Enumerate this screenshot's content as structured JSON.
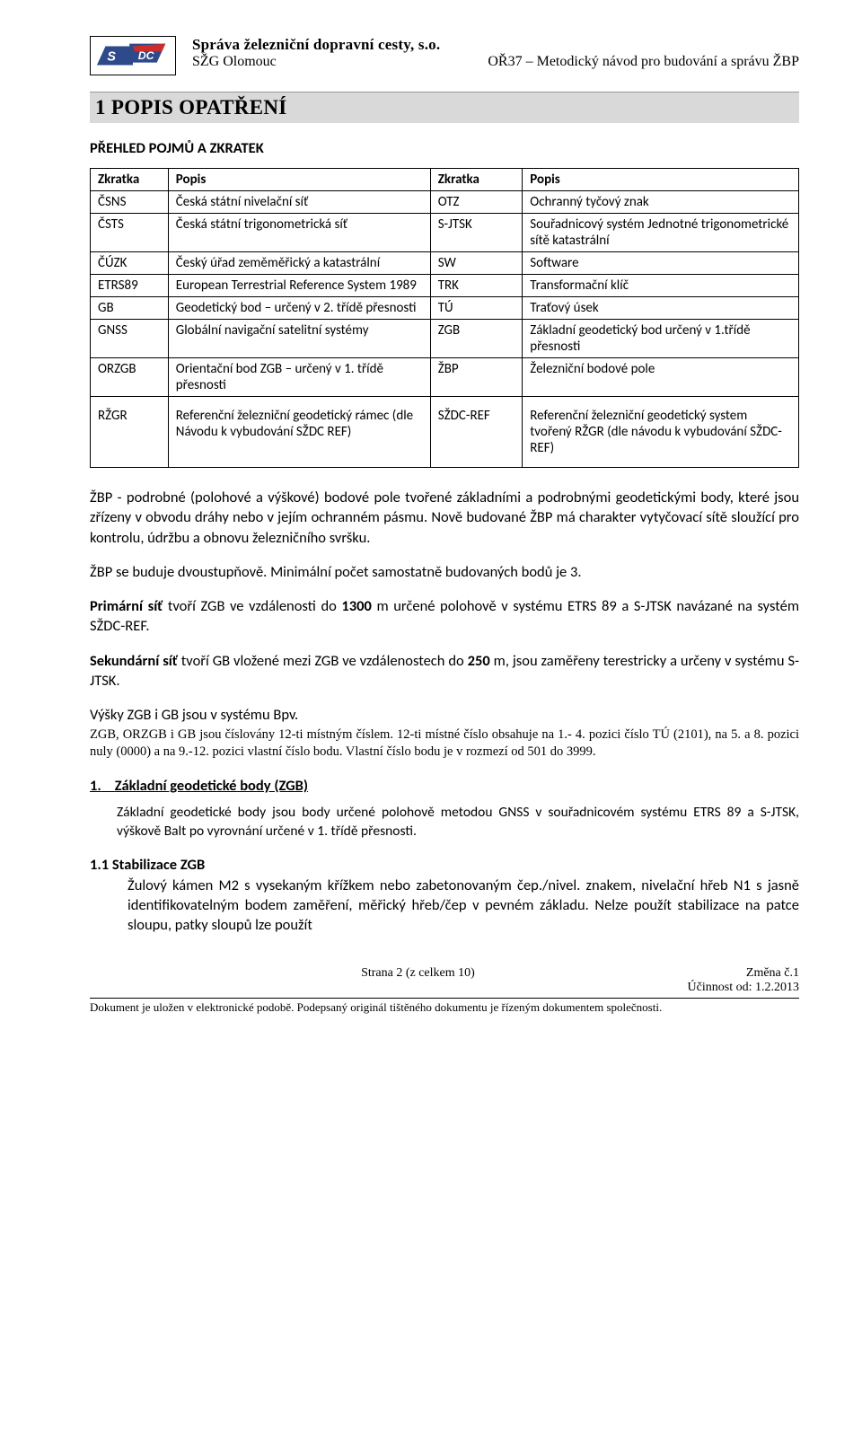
{
  "header": {
    "org": "Správa železniční dopravní cesty, s.o.",
    "left": "SŽG Olomouc",
    "right": "OŘ37 – Metodický návod pro budování a správu ŽBP"
  },
  "h1": "1 POPIS OPATŘENÍ",
  "section_head": "PŘEHLED POJMŮ A ZKRATEK",
  "table": {
    "headers": [
      "Zkratka",
      "Popis",
      "Zkratka",
      "Popis"
    ],
    "rows": [
      [
        "ČSNS",
        "Česká státní nivelační síť",
        "OTZ",
        "Ochranný tyčový znak"
      ],
      [
        "ČSTS",
        "Česká státní trigonometrická síť",
        "S-JTSK",
        "Souřadnicový systém Jednotné trigonometrické sítě katastrální"
      ],
      [
        "ČÚZK",
        "Český úřad zeměměřický a katastrální",
        "SW",
        "Software"
      ],
      [
        "ETRS89",
        "European Terrestrial Reference System 1989",
        "TRK",
        "Transformační klíč"
      ],
      [
        "GB",
        "Geodetický bod – určený v 2. třídě přesnosti",
        "TÚ",
        "Traťový úsek"
      ],
      [
        "GNSS",
        "Globální navigační satelitní systémy",
        "ZGB",
        "Základní geodetický bod určený v 1.třídě přesnosti"
      ],
      [
        "ORZGB",
        "Orientační bod ZGB – určený v 1. třídě přesnosti",
        "ŽBP",
        "Železniční bodové pole"
      ],
      [
        "RŽGR",
        "Referenční železniční geodetický rámec (dle Návodu k vybudování SŽDC REF)",
        "SŽDC-REF",
        "Referenční železniční geodetický system tvořený RŽGR (dle návodu k vybudování SŽDC-REF)"
      ]
    ]
  },
  "p1": "ŽBP - podrobné (polohové a výškové) bodové pole tvořené základními a podrobnými geodetickými body, které jsou zřízeny v obvodu dráhy nebo v jejím ochranném pásmu. Nově budované ŽBP má charakter vytyčovací sítě sloužící pro kontrolu, údržbu a obnovu železničního svršku.",
  "p2": "ŽBP se buduje dvoustupňově. Minimální počet samostatně budovaných bodů je 3.",
  "p3a": "Primární síť",
  "p3b": " tvoří ZGB ve vzdálenosti do ",
  "p3c": "1300",
  "p3d": " m určené polohově v systému ETRS 89 a S-JTSK  navázané na systém SŽDC-REF.",
  "p4a": "Sekundární síť",
  "p4b": " tvoří GB vložené mezi ZGB ve vzdálenostech do ",
  "p4c": "250",
  "p4d": " m, jsou zaměřeny terestricky a určeny v systému S-JTSK.",
  "p5": "Výšky ZGB i GB jsou v systému Bpv.",
  "p5_note": "ZGB, ORZGB i GB jsou číslovány 12-ti místným číslem.  12-ti místné číslo obsahuje na 1.- 4. pozici číslo TÚ (2101), na 5. a 8. pozici nuly (0000) a na 9.-12. pozici vlastní číslo bodu. Vlastní číslo bodu je v rozmezí od 501 do 3999.",
  "h2_1_num": "1.",
  "h2_1": "Základní geodetické body (ZGB)",
  "p6": "Základní geodetické body jsou body určené polohově metodou GNSS v souřadnicovém systému ETRS 89 a S-JTSK, výškově Balt po vyrovnání určené v 1. třídě přesnosti.",
  "h2_11": "1.1 Stabilizace ZGB",
  "p7": "Žulový kámen M2 s vysekaným křížkem nebo zabetonovaným čep./nivel. znakem, nivelační hřeb N1 s jasně identifikovatelným bodem zaměření, měřický hřeb/čep v pevném základu. Nelze použít stabilizace na patce sloupu, patky sloupů lze použít",
  "footer": {
    "left": "Strana 2 (z celkem 10)",
    "right1": "Změna č.1",
    "right2": "Účinnost od: 1.2.2013",
    "note": "Dokument  je uložen v elektronické podobě. Podepsaný originál tištěného dokumentu je řízeným dokumentem společnosti."
  }
}
